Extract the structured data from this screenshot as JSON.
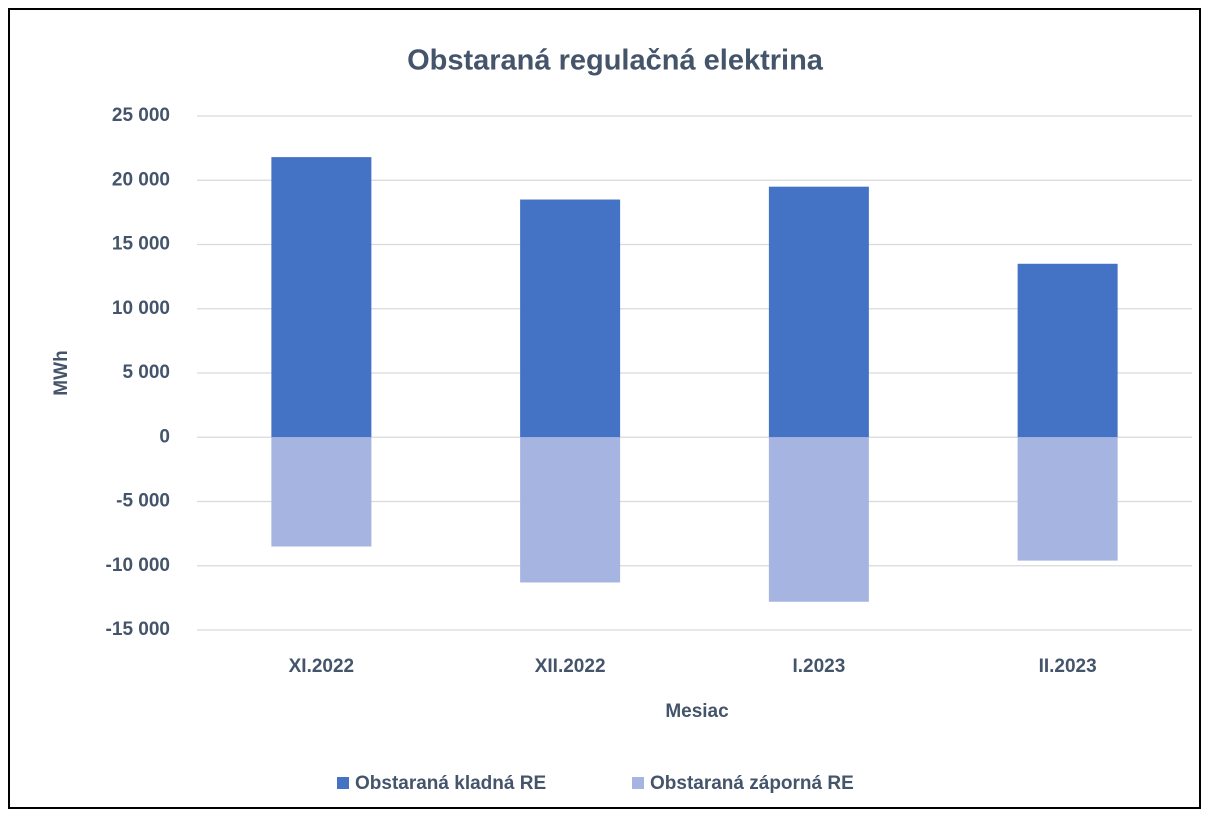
{
  "chart_data": {
    "type": "bar",
    "title": "Obstaraná regulačná elektrina",
    "x_label": "Mesiac",
    "y_label": "MWh",
    "categories": [
      "XI.2022",
      "XII.2022",
      "I.2023",
      "II.2023"
    ],
    "series": [
      {
        "name": "Obstaraná kladná RE",
        "color": "#4472c4",
        "values": [
          21800,
          18500,
          19500,
          13500
        ]
      },
      {
        "name": "Obstaraná záporná RE",
        "color": "#a5b4e0",
        "values": [
          -8500,
          -11300,
          -12800,
          -9600
        ]
      }
    ],
    "ylim": [
      -15000,
      25000
    ],
    "yticks": [
      {
        "value": -15000,
        "label": "-15 000"
      },
      {
        "value": -10000,
        "label": "-10 000"
      },
      {
        "value": -5000,
        "label": "-5 000"
      },
      0,
      {
        "value": 5000,
        "label": "5 000"
      },
      {
        "value": 10000,
        "label": "10 000"
      },
      {
        "value": 15000,
        "label": "15 000"
      },
      {
        "value": 20000,
        "label": "20 000"
      },
      {
        "value": 25000,
        "label": "25 000"
      }
    ],
    "grid": true,
    "legend": "bottom"
  }
}
